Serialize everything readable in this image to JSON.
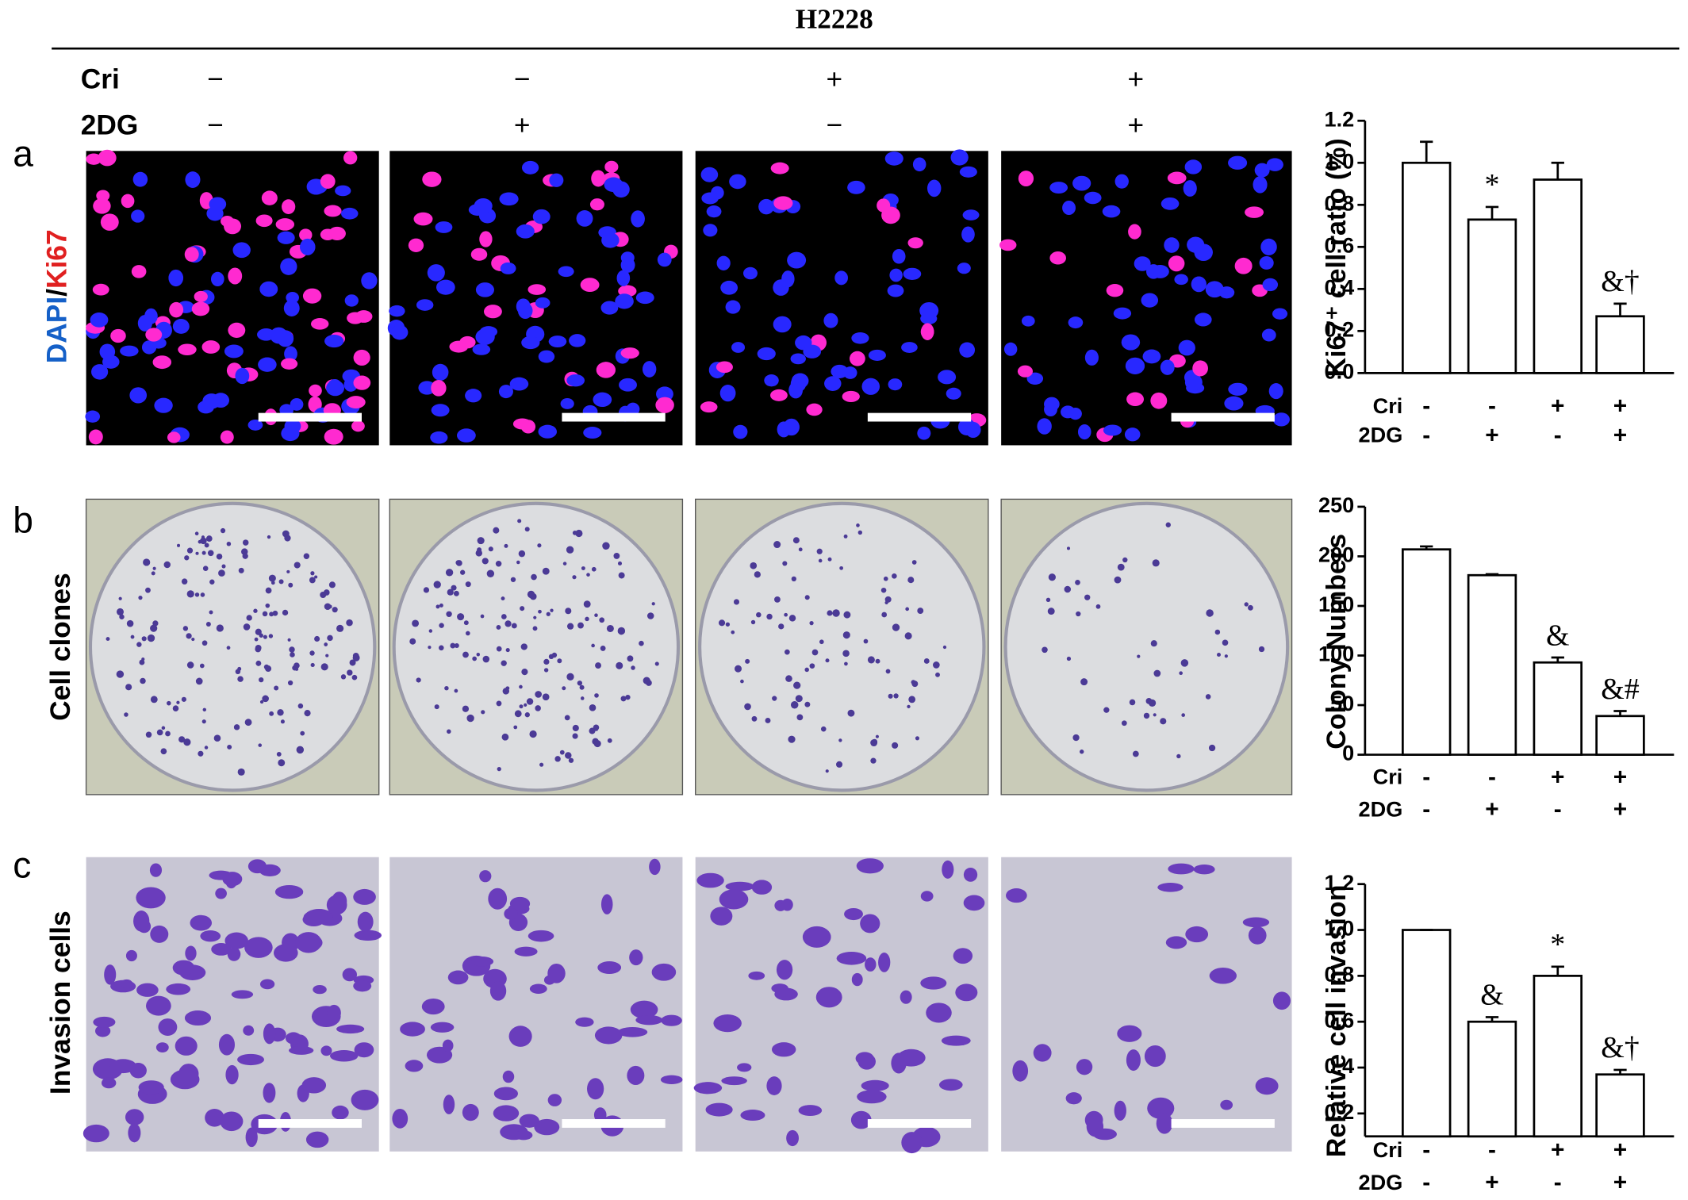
{
  "header": {
    "title": "H2228",
    "rows": [
      {
        "label": "Cri",
        "values": [
          "−",
          "−",
          "+",
          "+"
        ]
      },
      {
        "label": "2DG",
        "values": [
          "−",
          "+",
          "−",
          "+"
        ]
      }
    ]
  },
  "panels": [
    {
      "letter": "a",
      "label_parts": [
        "DAPI",
        "/",
        "Ki67"
      ]
    },
    {
      "letter": "b",
      "label": "Cell clones"
    },
    {
      "letter": "c",
      "label": "Invasion cells"
    }
  ],
  "chart_data": [
    {
      "type": "bar",
      "ylabel": "Ki67⁺ cell ratio (%)",
      "values": [
        1.0,
        0.73,
        0.92,
        0.27
      ],
      "errors": [
        0.1,
        0.06,
        0.08,
        0.06
      ],
      "annotations": [
        null,
        "*",
        null,
        "&†"
      ],
      "color": "#ffffff",
      "ylim": [
        0,
        1.2
      ],
      "yticks": [
        {
          "value": 0,
          "label": "0.0"
        },
        0.2,
        0.4,
        0.6,
        0.8,
        {
          "value": 1,
          "label": "1.0"
        },
        1.2
      ],
      "conditions": [
        {
          "label": "Cri",
          "values": [
            "-",
            "-",
            "+",
            "+"
          ]
        },
        {
          "label": "2DG",
          "values": [
            "-",
            "+",
            "-",
            "+"
          ]
        }
      ]
    },
    {
      "type": "bar",
      "ylabel": "Colony Numbers",
      "values": [
        207,
        181,
        93,
        39
      ],
      "errors": [
        3,
        1,
        5,
        5
      ],
      "annotations": [
        null,
        null,
        "&",
        "&#"
      ],
      "color": "#ffffff",
      "ylim": [
        0,
        250
      ],
      "yticks": [
        0,
        50,
        100,
        150,
        200,
        250
      ],
      "conditions": [
        {
          "label": "Cri",
          "values": [
            "-",
            "-",
            "+",
            "+"
          ]
        },
        {
          "label": "2DG",
          "values": [
            "-",
            "+",
            "-",
            "+"
          ]
        }
      ]
    },
    {
      "type": "bar",
      "ylabel": "Relative cell invasion",
      "values": [
        1.0,
        0.6,
        0.8,
        0.37
      ],
      "errors": [
        0,
        0.02,
        0.04,
        0.02
      ],
      "annotations": [
        null,
        "&",
        "*",
        "&†"
      ],
      "color": "#ffffff",
      "ylim": [
        0.1,
        1.2
      ],
      "yticks": [
        0.2,
        0.4,
        0.6,
        0.8,
        {
          "value": 1,
          "label": "1.0"
        },
        1.2
      ],
      "conditions": [
        {
          "label": "Cri",
          "values": [
            "-",
            "-",
            "+",
            "+"
          ]
        },
        {
          "label": "2DG",
          "values": [
            "-",
            "+",
            "-",
            "+"
          ]
        }
      ]
    }
  ]
}
